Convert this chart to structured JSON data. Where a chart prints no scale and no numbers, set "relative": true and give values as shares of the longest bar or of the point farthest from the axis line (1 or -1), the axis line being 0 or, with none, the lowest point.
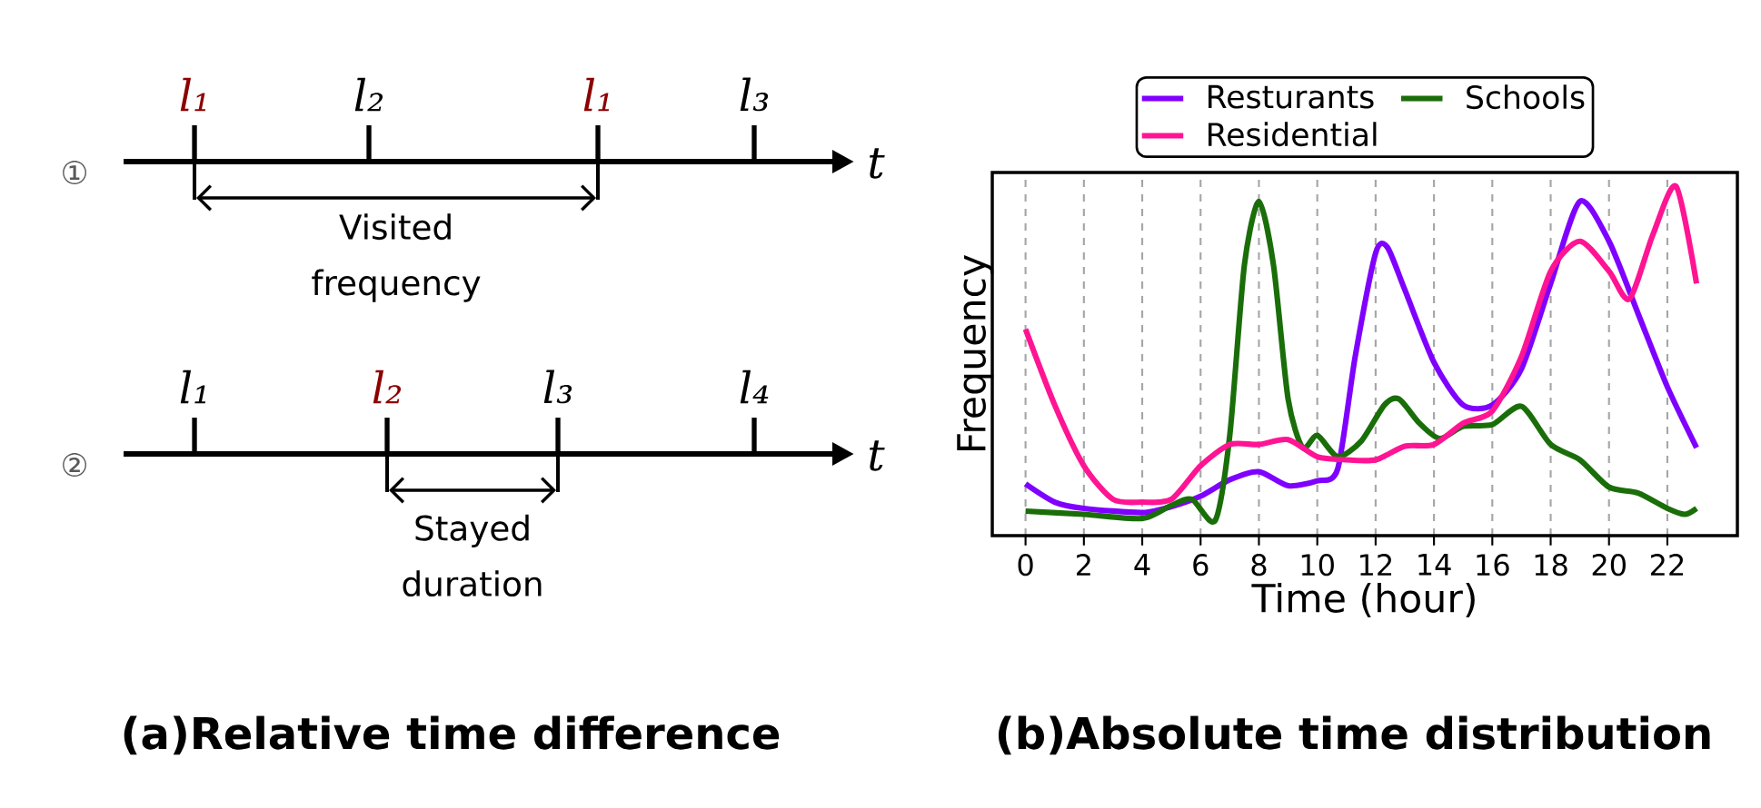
{
  "chart_data": [
    {
      "type": "other",
      "title": "(a)Relative time difference",
      "annotations": [
        "①",
        "l₁",
        "l₂",
        "l₁",
        "l₃",
        "t",
        "Visited frequency",
        "②",
        "l₁",
        "l₂",
        "l₃",
        "l₄",
        "t",
        "Stayed duration"
      ]
    },
    {
      "type": "line",
      "title": "(b)Absolute time distribution",
      "xlabel": "Time (hour)",
      "ylabel": "Frequency",
      "relative": true,
      "xlim": [
        -1.14,
        24.4
      ],
      "xticks": [
        0,
        2,
        4,
        6,
        8,
        10,
        12,
        14,
        16,
        18,
        20,
        22
      ],
      "grid": "x",
      "legend": "top",
      "series": [
        {
          "name": "Resturants",
          "color": "#7f00ff",
          "x": [
            0,
            1,
            2,
            4,
            5,
            6,
            7,
            8,
            9,
            10,
            10.7,
            11.3,
            12,
            12.4,
            13,
            14,
            15,
            16,
            17,
            18,
            19,
            20,
            21,
            22,
            23
          ],
          "values": [
            0.148,
            0.096,
            0.078,
            0.066,
            0.083,
            0.113,
            0.16,
            0.183,
            0.143,
            0.157,
            0.191,
            0.513,
            0.809,
            0.826,
            0.704,
            0.496,
            0.374,
            0.374,
            0.478,
            0.722,
            0.957,
            0.843,
            0.635,
            0.426,
            0.252
          ]
        },
        {
          "name": "Schools",
          "color": "#1a6e0a",
          "x": [
            0,
            2,
            4,
            5,
            5.7,
            6.5,
            7,
            7.5,
            8,
            8.5,
            9,
            9.5,
            10,
            10.7,
            11.5,
            12.3,
            12.8,
            13.5,
            14.2,
            15,
            16,
            17,
            18,
            19,
            20,
            21,
            22,
            22.6,
            23
          ],
          "values": [
            0.07,
            0.061,
            0.049,
            0.087,
            0.104,
            0.043,
            0.287,
            0.774,
            0.957,
            0.774,
            0.391,
            0.252,
            0.287,
            0.226,
            0.27,
            0.374,
            0.391,
            0.322,
            0.278,
            0.313,
            0.318,
            0.37,
            0.261,
            0.217,
            0.139,
            0.122,
            0.078,
            0.061,
            0.078
          ]
        },
        {
          "name": "Residential",
          "color": "#ff1493",
          "x": [
            0,
            1,
            2,
            3,
            4,
            5,
            6,
            7,
            8,
            9,
            10,
            11,
            12,
            13,
            14,
            15,
            16,
            17,
            18,
            19,
            20,
            20.7,
            21.5,
            22.3,
            23
          ],
          "values": [
            0.591,
            0.374,
            0.2,
            0.104,
            0.096,
            0.104,
            0.2,
            0.261,
            0.261,
            0.275,
            0.226,
            0.217,
            0.217,
            0.256,
            0.261,
            0.322,
            0.357,
            0.513,
            0.757,
            0.843,
            0.757,
            0.678,
            0.861,
            1.0,
            0.722
          ]
        }
      ]
    }
  ]
}
